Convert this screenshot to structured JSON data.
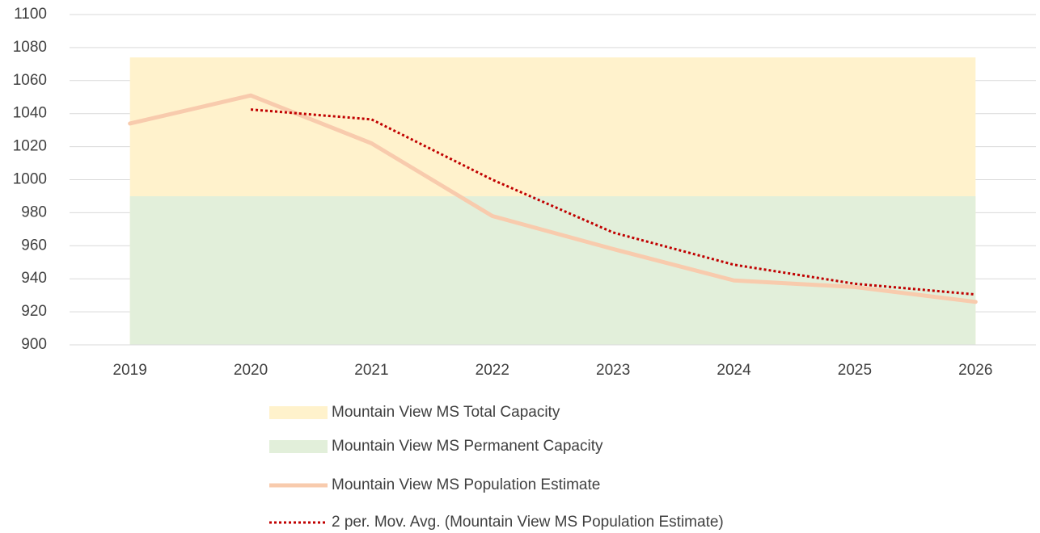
{
  "chart_data": {
    "type": "line",
    "categories": [
      "2019",
      "2020",
      "2021",
      "2022",
      "2023",
      "2024",
      "2025",
      "2026"
    ],
    "series": [
      {
        "name": "Mountain View MS Total Capacity",
        "kind": "area",
        "color": "#fff2cc",
        "values": [
          1074,
          1074,
          1074,
          1074,
          1074,
          1074,
          1074,
          1074
        ]
      },
      {
        "name": "Mountain View MS Permanent Capacity",
        "kind": "area",
        "color": "#e2efda",
        "values": [
          990,
          990,
          990,
          990,
          990,
          990,
          990,
          990
        ]
      },
      {
        "name": "Mountain View MS Population Estimate",
        "kind": "line",
        "color": "#f8cbad",
        "values": [
          1034,
          1051,
          1022,
          978,
          958,
          939,
          935,
          926
        ]
      },
      {
        "name": "2 per. Mov. Avg. (Mountain View MS Population Estimate)",
        "kind": "dotted",
        "color": "#c00000",
        "values": [
          null,
          1042.5,
          1036.5,
          1000,
          968,
          948.5,
          937,
          930.5
        ]
      }
    ],
    "ylim": [
      900,
      1100
    ],
    "yticks": [
      900,
      920,
      940,
      960,
      980,
      1000,
      1020,
      1040,
      1060,
      1080,
      1100
    ],
    "grid": true,
    "legend": "bottom"
  }
}
